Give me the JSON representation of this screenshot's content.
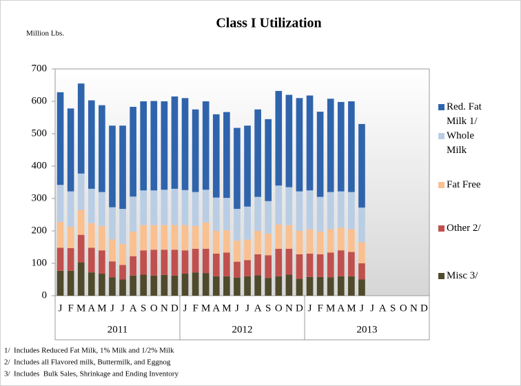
{
  "chart_data": {
    "type": "stacked_bar",
    "title": "Class I Utilization",
    "y_axis_label": "Million Lbs.",
    "categories": [
      "J",
      "F",
      "M",
      "A",
      "M",
      "J",
      "J",
      "A",
      "S",
      "O",
      "N",
      "D",
      "J",
      "F",
      "M",
      "A",
      "M",
      "J",
      "J",
      "A",
      "S",
      "O",
      "N",
      "D",
      "J",
      "F",
      "M",
      "A",
      "M",
      "J",
      "J",
      "A",
      "S",
      "O",
      "N",
      "D"
    ],
    "groups": [
      "2011",
      "2012",
      "2013"
    ],
    "ylim": [
      0,
      700
    ],
    "yticks": [
      0,
      100,
      200,
      300,
      400,
      500,
      600,
      700
    ],
    "grid": false,
    "legend_position": "right",
    "series": [
      {
        "name": "Misc 3/",
        "color": "#4f4a2c",
        "values": [
          77,
          77,
          103,
          72,
          68,
          57,
          50,
          62,
          65,
          62,
          64,
          62,
          68,
          72,
          70,
          60,
          60,
          56,
          60,
          63,
          55,
          60,
          65,
          52,
          58,
          58,
          57,
          60,
          60,
          50,
          null,
          null,
          null,
          null,
          null,
          null
        ]
      },
      {
        "name": "Other 2/",
        "color": "#c0504d",
        "values": [
          71,
          70,
          85,
          76,
          72,
          49,
          45,
          60,
          75,
          80,
          78,
          80,
          72,
          73,
          75,
          70,
          73,
          49,
          50,
          65,
          70,
          85,
          80,
          76,
          72,
          70,
          76,
          80,
          75,
          50,
          null,
          null,
          null,
          null,
          null,
          null
        ]
      },
      {
        "name": "Fat Free",
        "color": "#fac090",
        "values": [
          80,
          66,
          77,
          76,
          75,
          68,
          65,
          76,
          78,
          76,
          76,
          76,
          78,
          70,
          81,
          70,
          69,
          65,
          63,
          72,
          67,
          75,
          73,
          72,
          75,
          70,
          72,
          70,
          70,
          65,
          null,
          null,
          null,
          null,
          null,
          null
        ]
      },
      {
        "name": "Whole Milk",
        "color": "#b9cde5",
        "values": [
          114,
          109,
          112,
          106,
          105,
          99,
          108,
          108,
          107,
          107,
          109,
          112,
          108,
          105,
          101,
          103,
          100,
          98,
          102,
          105,
          100,
          120,
          117,
          122,
          120,
          107,
          115,
          112,
          115,
          107,
          null,
          null,
          null,
          null,
          null,
          null
        ]
      },
      {
        "name": "Red. Fat Milk 1/",
        "color": "#2f64ad",
        "values": [
          286,
          256,
          278,
          273,
          268,
          252,
          257,
          277,
          275,
          276,
          273,
          285,
          284,
          255,
          273,
          257,
          265,
          250,
          250,
          270,
          253,
          292,
          285,
          288,
          293,
          263,
          288,
          276,
          280,
          258,
          null,
          null,
          null,
          null,
          null,
          null
        ]
      }
    ],
    "footnotes": [
      "1/  Includes Reduced Fat Milk, 1% Milk and 1/2% Milk",
      "2/  Includes all Flavored milk, Buttermilk, and Eggnog",
      "3/  Includes  Bulk Sales, Shrinkage and Ending Inventory"
    ]
  }
}
